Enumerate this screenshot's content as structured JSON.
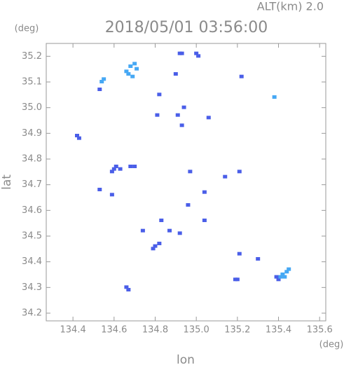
{
  "chart_data": {
    "type": "scatter",
    "title": "2018/05/01 03:56:00",
    "subtitle": "ALT(km) 2.0",
    "x_label": "lon",
    "y_label": "lat",
    "x_unit": "(deg)",
    "y_unit": "(deg)",
    "xlim": [
      134.27,
      135.63
    ],
    "ylim": [
      34.17,
      35.25
    ],
    "xticks": [
      134.4,
      134.6,
      134.8,
      {
        "value": 135,
        "label": "135.0"
      },
      135.2,
      135.4,
      135.6
    ],
    "yticks": [
      34.2,
      34.3,
      34.4,
      34.5,
      34.6,
      34.7,
      34.8,
      34.9,
      {
        "value": 35,
        "label": "35.0"
      },
      35.1,
      35.2
    ],
    "series": [
      {
        "color": "#4a5ee8",
        "x": [
          134.42,
          134.43,
          134.53,
          134.92,
          134.93,
          135.0,
          135.01,
          134.9,
          135.22,
          134.82,
          134.81,
          134.91,
          134.94,
          134.93,
          135.06,
          134.6,
          134.61,
          134.63,
          134.59,
          134.68,
          134.7,
          134.53,
          134.59,
          135.21,
          135.04,
          134.96,
          134.74,
          134.87,
          134.82,
          134.8,
          134.79,
          135.04,
          134.66,
          134.67,
          135.2,
          135.19,
          135.3,
          135.21,
          135.4,
          135.39,
          134.97,
          134.83,
          134.92,
          135.14
        ],
        "y": [
          34.89,
          34.88,
          35.07,
          35.21,
          35.21,
          35.21,
          35.2,
          35.13,
          35.12,
          35.05,
          34.97,
          34.97,
          35.0,
          34.93,
          34.96,
          34.76,
          34.77,
          34.76,
          34.75,
          34.77,
          34.77,
          34.68,
          34.66,
          34.75,
          34.67,
          34.62,
          34.52,
          34.52,
          34.47,
          34.46,
          34.45,
          34.56,
          34.3,
          34.29,
          34.33,
          34.33,
          34.41,
          34.43,
          34.33,
          34.34,
          34.75,
          34.56,
          34.51,
          34.73
        ]
      },
      {
        "color": "#46a8f4",
        "x": [
          134.54,
          134.55,
          134.68,
          134.7,
          134.71,
          134.67,
          134.66,
          134.69,
          135.42,
          135.44,
          135.45,
          135.43,
          135.41,
          135.38
        ],
        "y": [
          35.1,
          35.11,
          35.16,
          35.17,
          35.15,
          35.13,
          35.14,
          35.12,
          34.35,
          34.36,
          34.37,
          34.34,
          34.34,
          35.04
        ]
      }
    ]
  }
}
